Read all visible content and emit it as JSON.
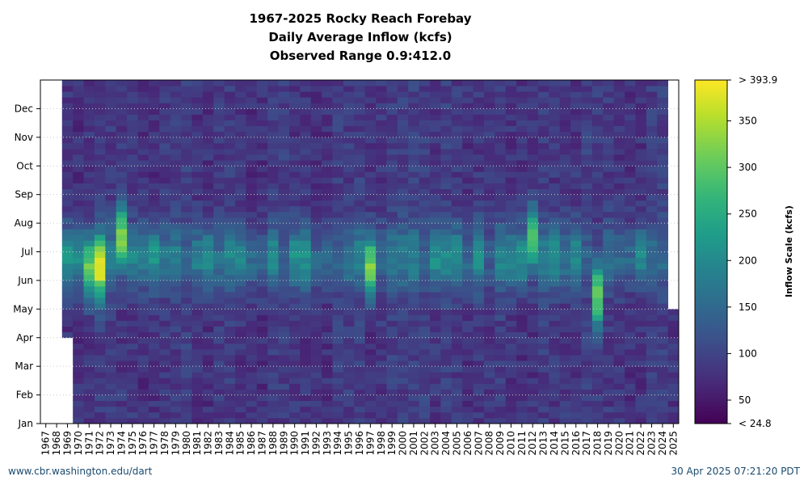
{
  "chart_data": {
    "type": "heatmap",
    "title_lines": [
      "1967-2025 Rocky Reach Forebay",
      "Daily Average Inflow (kcfs)",
      "Observed Range 0.9:412.0"
    ],
    "x_ticks": [
      "1967",
      "1968",
      "1969",
      "1970",
      "1971",
      "1972",
      "1973",
      "1974",
      "1975",
      "1976",
      "1977",
      "1978",
      "1979",
      "1980",
      "1981",
      "1982",
      "1983",
      "1984",
      "1985",
      "1986",
      "1987",
      "1988",
      "1989",
      "1990",
      "1991",
      "1992",
      "1993",
      "1994",
      "1995",
      "1996",
      "1997",
      "1998",
      "1999",
      "2000",
      "2001",
      "2002",
      "2003",
      "2004",
      "2005",
      "2006",
      "2007",
      "2008",
      "2009",
      "2010",
      "2011",
      "2012",
      "2013",
      "2014",
      "2015",
      "2016",
      "2017",
      "2018",
      "2019",
      "2020",
      "2021",
      "2022",
      "2023",
      "2024",
      "2025"
    ],
    "y_ticks": [
      "Jan",
      "Feb",
      "Mar",
      "Apr",
      "May",
      "Jun",
      "Jul",
      "Aug",
      "Sep",
      "Oct",
      "Nov",
      "Dec"
    ],
    "colorbar": {
      "label": "Inflow Scale (kcfs)",
      "ticks": [
        "< 24.8",
        "50",
        "100",
        "150",
        "200",
        "250",
        "300",
        "350",
        "> 393.9"
      ],
      "range": [
        24.8,
        393.9
      ],
      "colormap": "viridis"
    },
    "series": [
      {
        "name": "",
        "values": [
          {
            "year": 1971,
            "peak_month": "Jun",
            "peak_kcfs": 300
          },
          {
            "year": 1972,
            "peak_month": "Jun",
            "peak_kcfs": 390
          },
          {
            "year": 1974,
            "peak_month": "Jul",
            "peak_kcfs": 330
          },
          {
            "year": 1997,
            "peak_month": "Jun",
            "peak_kcfs": 320
          },
          {
            "year": 2012,
            "peak_month": "Jul",
            "peak_kcfs": 300
          },
          {
            "year": 2018,
            "peak_month": "May",
            "peak_kcfs": 310
          }
        ]
      }
    ],
    "data_start": {
      "1969": "Apr",
      "1970": "Jan"
    },
    "data_end": {
      "2025": "Apr"
    },
    "observed_range": [
      0.9,
      412.0
    ]
  },
  "footer": {
    "left": "www.cbr.washington.edu/dart",
    "right": "30 Apr 2025 07:21:20 PDT"
  }
}
